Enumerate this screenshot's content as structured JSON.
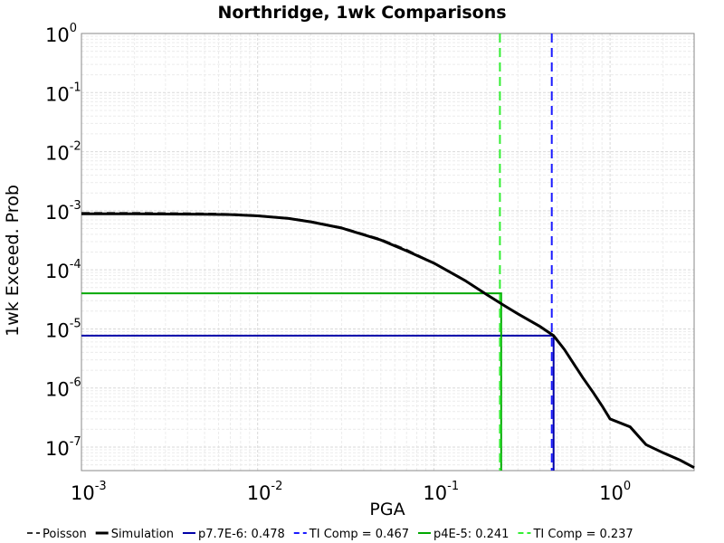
{
  "chart_data": {
    "type": "line",
    "title": "Northridge, 1wk Comparisons",
    "xlabel": "PGA",
    "ylabel": "1wk Exceed. Prob",
    "xscale": "log",
    "yscale": "log",
    "xlim": [
      0.001,
      3.0
    ],
    "ylim": [
      4e-08,
      1.0
    ],
    "grid": true,
    "legend": "bottom",
    "x_ticks": [
      {
        "base": "10",
        "exp": "-3",
        "value": 0.001
      },
      {
        "base": "10",
        "exp": "-2",
        "value": 0.01
      },
      {
        "base": "10",
        "exp": "-1",
        "value": 0.1
      },
      {
        "base": "10",
        "exp": "0",
        "value": 1
      }
    ],
    "y_ticks": [
      {
        "base": "10",
        "exp": "0",
        "value": 1
      },
      {
        "base": "10",
        "exp": "-1",
        "value": 0.1
      },
      {
        "base": "10",
        "exp": "-2",
        "value": 0.01
      },
      {
        "base": "10",
        "exp": "-3",
        "value": 0.001
      },
      {
        "base": "10",
        "exp": "-4",
        "value": 0.0001
      },
      {
        "base": "10",
        "exp": "-5",
        "value": 1e-05
      },
      {
        "base": "10",
        "exp": "-6",
        "value": 1e-06
      },
      {
        "base": "10",
        "exp": "-7",
        "value": 1e-07
      }
    ],
    "series": [
      {
        "name": "Poisson",
        "color": "#333333",
        "dash": true,
        "x": [
          0.001,
          0.002,
          0.003,
          0.005,
          0.007,
          0.01,
          0.015,
          0.02,
          0.03,
          0.05,
          0.07,
          0.1,
          0.15,
          0.2,
          0.25,
          0.3,
          0.4,
          0.478
        ],
        "y": [
          0.00092,
          0.00092,
          0.00091,
          0.0009,
          0.00088,
          0.00083,
          0.00075,
          0.00066,
          0.00052,
          0.00033,
          0.00022,
          0.00013,
          6.6e-05,
          3.8e-05,
          2.5e-05,
          1.8e-05,
          1.1e-05,
          7.7e-06
        ]
      },
      {
        "name": "Simulation",
        "color": "#000000",
        "dash": false,
        "x": [
          0.001,
          0.002,
          0.003,
          0.005,
          0.007,
          0.01,
          0.015,
          0.02,
          0.03,
          0.05,
          0.07,
          0.1,
          0.15,
          0.2,
          0.25,
          0.3,
          0.4,
          0.478,
          0.55,
          0.7,
          0.8,
          0.9,
          1.0,
          1.3,
          1.6,
          2.0,
          2.5,
          3.0
        ],
        "y": [
          0.00089,
          0.00089,
          0.00088,
          0.00087,
          0.00086,
          0.00082,
          0.00074,
          0.00065,
          0.00051,
          0.00032,
          0.00021,
          0.00013,
          6.6e-05,
          3.8e-05,
          2.5e-05,
          1.8e-05,
          1.1e-05,
          7.7e-06,
          4.5e-06,
          1.5e-06,
          8.5e-07,
          5e-07,
          3e-07,
          2.2e-07,
          1.1e-07,
          8e-08,
          6e-08,
          4.5e-08
        ]
      },
      {
        "name": "p7.7E-6: 0.478",
        "color": "#0000a8",
        "dash": false,
        "x": [
          0.001,
          0.478,
          0.478
        ],
        "y": [
          7.7e-06,
          7.7e-06,
          4e-08
        ]
      },
      {
        "name": "TI Comp = 0.467",
        "color": "#1a1aff",
        "dash": true,
        "x": [
          0.467,
          0.467
        ],
        "y": [
          1.0,
          4e-08
        ]
      },
      {
        "name": "p4E-5: 0.241",
        "color": "#00a800",
        "dash": false,
        "x": [
          0.001,
          0.241,
          0.241
        ],
        "y": [
          4e-05,
          4e-05,
          4e-08
        ]
      },
      {
        "name": "TI Comp = 0.237",
        "color": "#33ee33",
        "dash": true,
        "x": [
          0.237,
          0.237
        ],
        "y": [
          1.0,
          4e-08
        ]
      }
    ]
  }
}
